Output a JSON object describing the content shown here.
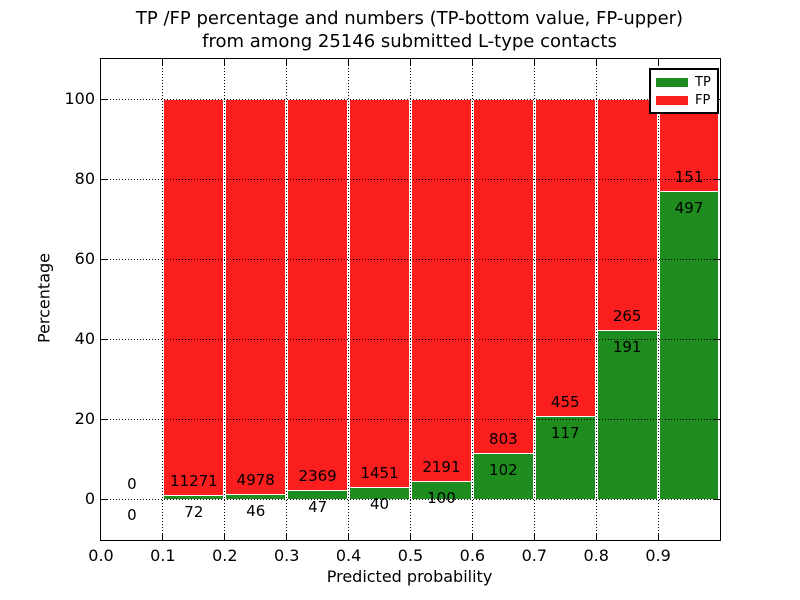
{
  "title": {
    "line1": "TP /FP percentage and numbers (TP-bottom value, FP-upper)",
    "line2": "from among 25146 submitted L-type contacts"
  },
  "chart_data": {
    "type": "bar",
    "stacked": true,
    "normalized_to_percent": true,
    "title": "TP /FP percentage and numbers (TP-bottom value, FP-upper) from among 25146 submitted L-type contacts",
    "xlabel": "Predicted probability",
    "ylabel": "Percentage",
    "xlim": [
      0.0,
      1.0
    ],
    "ylim": [
      -10,
      110
    ],
    "grid": "dotted",
    "legend_position": "upper right",
    "total_submitted": 25146,
    "x_tick_labels": [
      "0.0",
      "0.1",
      "0.2",
      "0.3",
      "0.4",
      "0.5",
      "0.6",
      "0.7",
      "0.8",
      "0.9"
    ],
    "y_tick_labels": [
      "0",
      "20",
      "40",
      "60",
      "80",
      "100"
    ],
    "y_tick_values": [
      0,
      20,
      40,
      60,
      80,
      100
    ],
    "legend": [
      {
        "name": "TP",
        "color": "#1e8c1e"
      },
      {
        "name": "FP",
        "color": "#fa1e1e"
      }
    ],
    "bins": [
      {
        "range": [
          0.0,
          0.1
        ],
        "tp": 0,
        "fp": 0
      },
      {
        "range": [
          0.1,
          0.2
        ],
        "tp": 72,
        "fp": 11271
      },
      {
        "range": [
          0.2,
          0.3
        ],
        "tp": 46,
        "fp": 4978
      },
      {
        "range": [
          0.3,
          0.4
        ],
        "tp": 47,
        "fp": 2369
      },
      {
        "range": [
          0.4,
          0.5
        ],
        "tp": 40,
        "fp": 1451
      },
      {
        "range": [
          0.5,
          0.6
        ],
        "tp": 100,
        "fp": 2191
      },
      {
        "range": [
          0.6,
          0.7
        ],
        "tp": 102,
        "fp": 803
      },
      {
        "range": [
          0.7,
          0.8
        ],
        "tp": 117,
        "fp": 455
      },
      {
        "range": [
          0.8,
          0.9
        ],
        "tp": 191,
        "fp": 265
      },
      {
        "range": [
          0.9,
          1.0
        ],
        "tp": 497,
        "fp": 151
      }
    ]
  }
}
